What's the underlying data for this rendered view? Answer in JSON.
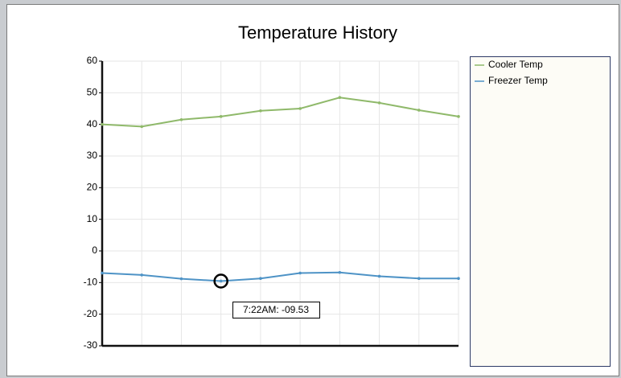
{
  "chart_data": {
    "type": "line",
    "title": "Temperature History",
    "series": [
      {
        "name": "Cooler Temp",
        "color": "#8fb96a",
        "values": [
          40,
          39.3,
          41.5,
          42.5,
          44.3,
          45,
          48.5,
          46.8,
          44.5,
          42.5
        ]
      },
      {
        "name": "Freezer Temp",
        "color": "#4e93c6",
        "values": [
          -7,
          -7.6,
          -8.8,
          -9.53,
          -8.7,
          -7,
          -6.8,
          -8,
          -8.7,
          -8.7
        ]
      }
    ],
    "ylim": [
      -30,
      60
    ],
    "yticks": [
      -30,
      -20,
      -10,
      0,
      10,
      20,
      30,
      40,
      50,
      60
    ],
    "grid": true,
    "legend": "right",
    "tooltip": {
      "label": "7:22AM: -09.53",
      "series": 1,
      "index": 3
    }
  }
}
